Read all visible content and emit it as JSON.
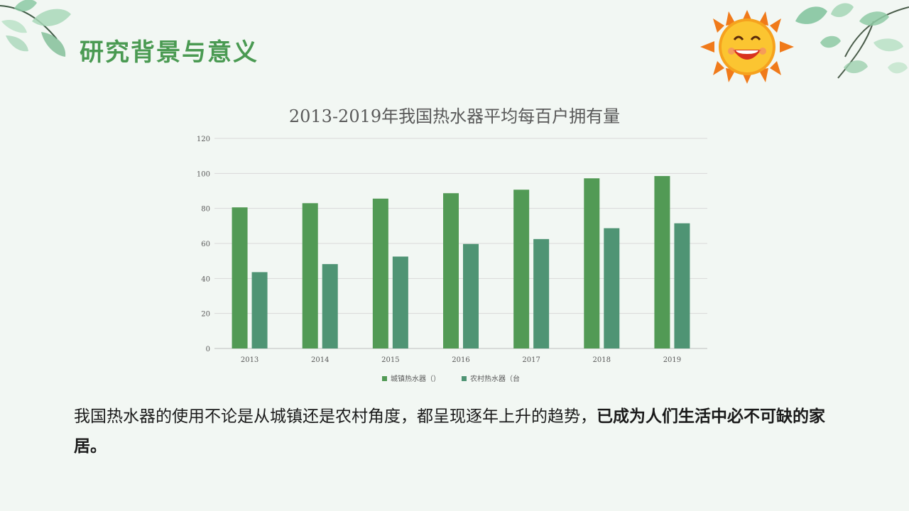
{
  "slide": {
    "title": "研究背景与意义"
  },
  "text": {
    "normal": "我国热水器的使用不论是从城镇还是农村角度，都呈现逐年上升的趋势，",
    "bold": "已成为人们生活中必不可缺的家居。"
  },
  "colors": {
    "title_green": "#4a9a52",
    "urban_bar": "#529a55",
    "rural_bar": "#4f9474",
    "gridline": "#d9d9d9",
    "axis_text": "#595959"
  },
  "decor": {
    "left_icon": "leaf-branch-icon",
    "right_icon": "leaf-branch-icon",
    "sun_icon": "smiling-sun-icon"
  },
  "chart_data": {
    "type": "bar",
    "title": "2013-2019年我国热水器平均每百户拥有量",
    "categories": [
      "2013",
      "2014",
      "2015",
      "2016",
      "2017",
      "2018",
      "2019"
    ],
    "series": [
      {
        "name": "城镇热水器（）",
        "values": [
          80.6,
          83,
          85.6,
          88.7,
          90.7,
          97.2,
          98.5
        ]
      },
      {
        "name": "农村热水器（台",
        "values": [
          43.6,
          48.2,
          52.5,
          59.7,
          62.5,
          68.7,
          71.5
        ]
      }
    ],
    "ylim": [
      0,
      120
    ],
    "yticks": [
      0,
      20,
      40,
      60,
      80,
      100,
      120
    ],
    "grid": true,
    "legend": "bottom"
  }
}
